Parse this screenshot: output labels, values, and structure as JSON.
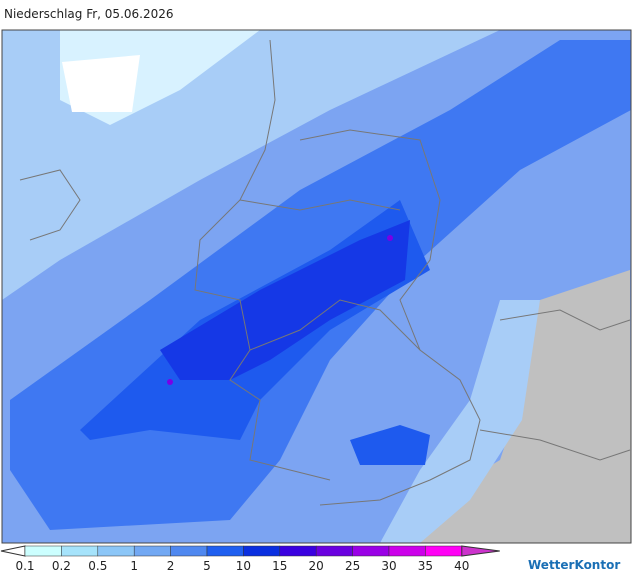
{
  "header": {
    "title": "Niederschlag Fr, 05.06.2026"
  },
  "legend": {
    "labels": [
      "0.1",
      "0.2",
      "0.5",
      "1",
      "2",
      "5",
      "10",
      "15",
      "20",
      "25",
      "30",
      "35",
      "40"
    ],
    "under_color": "#ffffff",
    "colors": [
      "#ccffff",
      "#a6e3fb",
      "#8cc6f7",
      "#72a8f3",
      "#4f88f0",
      "#1f5ff0",
      "#0a2fe0",
      "#3a00e0",
      "#6a00e0",
      "#9a00e6",
      "#cc00ea",
      "#ff00f5"
    ],
    "over_color": "#cc33cc"
  },
  "logo": {
    "text": "WetterKontor"
  }
}
